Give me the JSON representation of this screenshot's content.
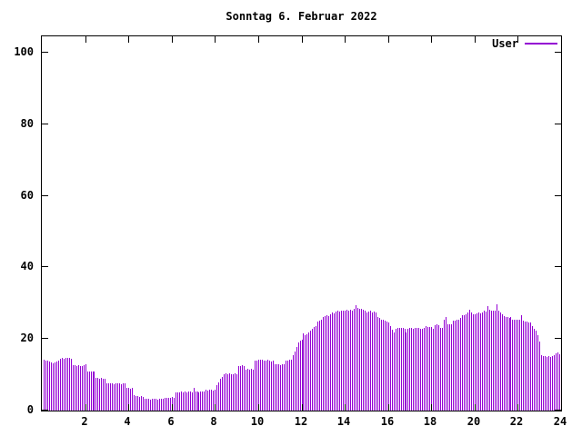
{
  "title": "Sonntag 6. Februar 2022",
  "legend": {
    "label": "User",
    "position": "top-right"
  },
  "colors": {
    "bar": "#9400d3",
    "axis": "#000000",
    "background": "#ffffff",
    "text": "#000000"
  },
  "chart_data": {
    "type": "bar",
    "title": "Sonntag 6. Februar 2022",
    "xlabel": "",
    "ylabel": "",
    "x_unit": "hour of day",
    "xlim": [
      0,
      24
    ],
    "ylim": [
      0,
      105
    ],
    "xticks": [
      2,
      4,
      6,
      8,
      10,
      12,
      14,
      16,
      18,
      20,
      22,
      24
    ],
    "yticks": [
      0,
      20,
      40,
      60,
      80,
      100
    ],
    "grid": false,
    "legend_position": "top-right",
    "series": [
      {
        "name": "User",
        "color": "#9400d3",
        "interval_minutes": 5,
        "values": [
          14.2,
          14.0,
          13.9,
          13.6,
          13.4,
          13.3,
          13.5,
          13.6,
          14.0,
          14.4,
          14.6,
          14.5,
          14.7,
          14.6,
          14.7,
          14.5,
          12.6,
          12.7,
          12.5,
          12.6,
          12.4,
          12.5,
          12.6,
          13.0,
          11.0,
          10.9,
          11.0,
          10.8,
          10.9,
          9.2,
          9.1,
          9.0,
          9.1,
          8.9,
          9.0,
          7.7,
          7.6,
          7.5,
          7.6,
          7.4,
          7.6,
          7.5,
          7.6,
          7.4,
          7.5,
          7.6,
          6.4,
          6.3,
          6.2,
          6.3,
          4.2,
          4.0,
          4.1,
          3.9,
          4.0,
          3.9,
          3.3,
          3.2,
          3.3,
          3.1,
          3.2,
          3.3,
          3.2,
          3.1,
          3.3,
          3.2,
          3.4,
          3.5,
          3.6,
          3.5,
          3.6,
          3.7,
          3.6,
          5.1,
          5.2,
          5.0,
          5.3,
          5.2,
          5.3,
          5.2,
          5.4,
          5.3,
          5.2,
          6.3,
          5.3,
          5.4,
          5.2,
          5.3,
          5.4,
          5.3,
          5.8,
          5.7,
          5.9,
          5.8,
          5.7,
          5.8,
          7.0,
          7.8,
          8.9,
          9.5,
          10.1,
          10.3,
          10.2,
          10.4,
          10.1,
          10.2,
          10.3,
          10.2,
          12.5,
          12.4,
          12.6,
          12.4,
          11.5,
          11.6,
          11.4,
          11.6,
          11.5,
          13.9,
          14.0,
          14.2,
          14.1,
          14.2,
          14.0,
          13.9,
          14.1,
          14.0,
          13.8,
          13.9,
          13.0,
          12.9,
          13.0,
          12.8,
          12.9,
          13.0,
          13.9,
          14.0,
          14.1,
          14.2,
          15.4,
          16.5,
          17.7,
          19.0,
          19.5,
          19.7,
          21.5,
          21.0,
          21.4,
          21.8,
          22.3,
          22.8,
          23.3,
          23.7,
          24.8,
          25.1,
          25.5,
          26.1,
          26.4,
          26.6,
          26.5,
          27.0,
          27.3,
          27.2,
          27.6,
          27.8,
          27.7,
          27.9,
          27.8,
          28.0,
          28.1,
          27.9,
          28.2,
          28.0,
          28.4,
          29.4,
          28.6,
          28.5,
          28.3,
          28.1,
          27.8,
          27.3,
          27.6,
          27.8,
          27.5,
          27.7,
          27.4,
          26.1,
          25.8,
          25.5,
          25.3,
          25.0,
          24.8,
          24.5,
          23.5,
          22.5,
          21.8,
          22.8,
          23.0,
          23.2,
          23.1,
          23.0,
          22.9,
          21.8,
          22.9,
          23.0,
          23.1,
          22.9,
          23.0,
          23.1,
          23.0,
          22.9,
          22.8,
          23.2,
          23.5,
          23.3,
          23.4,
          23.3,
          22.8,
          23.8,
          24.0,
          23.9,
          23.0,
          23.2,
          25.3,
          26.1,
          24.2,
          24.0,
          24.2,
          25.0,
          25.2,
          25.3,
          25.5,
          26.0,
          26.6,
          26.7,
          26.8,
          27.3,
          28.1,
          27.3,
          27.0,
          26.8,
          27.2,
          27.3,
          27.2,
          27.4,
          27.8,
          27.7,
          29.1,
          28.1,
          27.9,
          27.8,
          27.9,
          29.6,
          27.8,
          27.5,
          26.8,
          26.5,
          26.2,
          26.1,
          26.0,
          26.1,
          25.5,
          25.4,
          25.3,
          25.3,
          25.4,
          26.6,
          25.2,
          24.9,
          24.8,
          24.7,
          24.6,
          23.5,
          22.9,
          22.3,
          21.0,
          19.2,
          15.4,
          15.2,
          15.3,
          15.1,
          15.2,
          15.0,
          15.3,
          15.5,
          15.9,
          16.2,
          15.8,
          13.0
        ]
      }
    ]
  }
}
